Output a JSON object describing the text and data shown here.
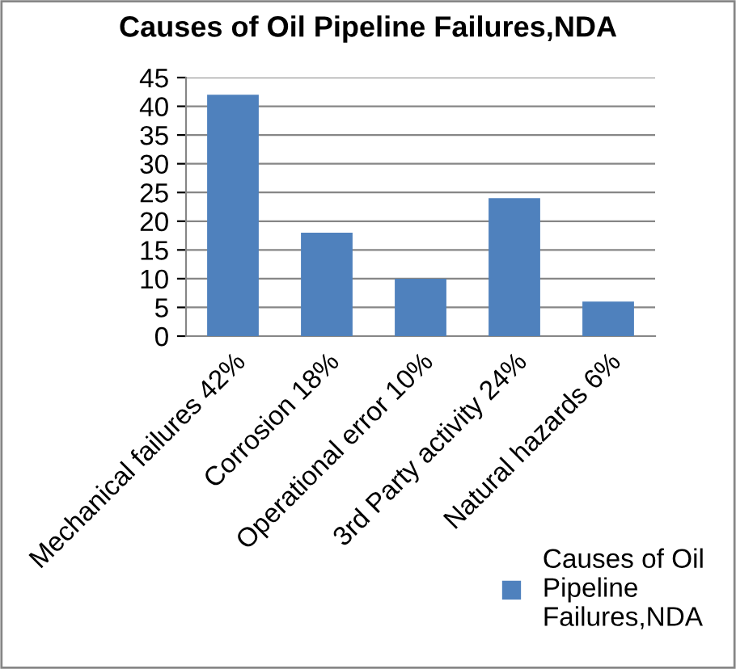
{
  "chart_data": {
    "type": "bar",
    "title": "Causes of Oil Pipeline Failures,NDA",
    "categories": [
      "Mechanical failures 42%",
      "Corrosion 18%",
      "Operational error 10%",
      "3rd Party activity 24%",
      "Natural hazards 6%"
    ],
    "series": [
      {
        "name": "Causes of Oil Pipeline Failures,NDA",
        "color": "#4f81bd",
        "values": [
          42,
          18,
          10,
          24,
          6
        ]
      }
    ],
    "ylim": [
      0,
      45
    ],
    "yticks": [
      0,
      5,
      10,
      15,
      20,
      25,
      30,
      35,
      40,
      45
    ],
    "grid": "y",
    "legend": "bottom right"
  }
}
